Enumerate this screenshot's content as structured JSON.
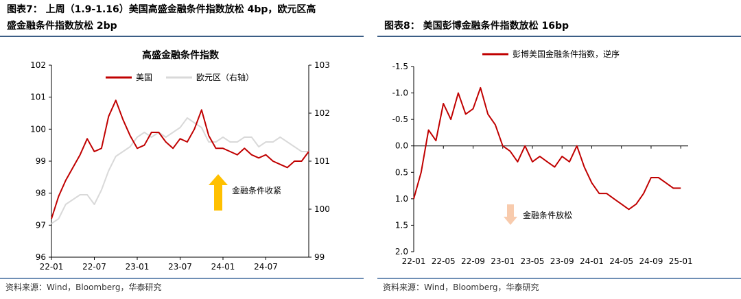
{
  "figures": [
    {
      "title_line1": "图表7：  上周（1.9-1.16）美国高盛金融条件指数放松  4bp，欧元区高",
      "title_line2": "盛金融条件指数放松 2bp",
      "source": "资料来源：Wind，Bloomberg，华泰研究"
    },
    {
      "title_line1": "图表8：  美国彭博金融条件指数放松 16bp",
      "source": "资料来源：Wind，Bloomberg，华泰研究"
    }
  ],
  "chart_data": [
    {
      "type": "line",
      "title": "高盛金融条件指数",
      "x_ticks": [
        "22-01",
        "22-07",
        "23-01",
        "23-07",
        "24-01",
        "24-07"
      ],
      "x_range": [
        "2022-01",
        "2025-01"
      ],
      "y_left": {
        "ylim": [
          96,
          102
        ],
        "ticks": [
          "96",
          "97",
          "98",
          "99",
          "100",
          "101",
          "102"
        ]
      },
      "y_right": {
        "ylim": [
          99,
          103
        ],
        "ticks": [
          "99",
          "100",
          "101",
          "102",
          "103"
        ]
      },
      "legend_position": "top",
      "series": [
        {
          "name": "美国",
          "axis": "left",
          "color": "#c00000",
          "points": [
            [
              "2022-01",
              97.2
            ],
            [
              "2022-02",
              97.9
            ],
            [
              "2022-03",
              98.4
            ],
            [
              "2022-04",
              98.8
            ],
            [
              "2022-05",
              99.2
            ],
            [
              "2022-06",
              99.7
            ],
            [
              "2022-07",
              99.3
            ],
            [
              "2022-08",
              99.4
            ],
            [
              "2022-09",
              100.4
            ],
            [
              "2022-10",
              100.9
            ],
            [
              "2022-11",
              100.3
            ],
            [
              "2022-12",
              99.8
            ],
            [
              "2023-01",
              99.4
            ],
            [
              "2023-02",
              99.5
            ],
            [
              "2023-03",
              99.9
            ],
            [
              "2023-04",
              99.9
            ],
            [
              "2023-05",
              99.6
            ],
            [
              "2023-06",
              99.4
            ],
            [
              "2023-07",
              99.7
            ],
            [
              "2023-08",
              99.6
            ],
            [
              "2023-09",
              100.0
            ],
            [
              "2023-10",
              100.6
            ],
            [
              "2023-11",
              99.8
            ],
            [
              "2023-12",
              99.4
            ],
            [
              "2024-01",
              99.4
            ],
            [
              "2024-02",
              99.3
            ],
            [
              "2024-03",
              99.2
            ],
            [
              "2024-04",
              99.4
            ],
            [
              "2024-05",
              99.2
            ],
            [
              "2024-06",
              99.1
            ],
            [
              "2024-07",
              99.2
            ],
            [
              "2024-08",
              99.0
            ],
            [
              "2024-09",
              98.9
            ],
            [
              "2024-10",
              98.8
            ],
            [
              "2024-11",
              99.0
            ],
            [
              "2024-12",
              99.0
            ],
            [
              "2025-01",
              99.3
            ]
          ]
        },
        {
          "name": "欧元区（右轴）",
          "axis": "right",
          "color": "#d9d9d9",
          "points": [
            [
              "2022-01",
              99.7
            ],
            [
              "2022-02",
              99.8
            ],
            [
              "2022-03",
              100.1
            ],
            [
              "2022-04",
              100.2
            ],
            [
              "2022-05",
              100.3
            ],
            [
              "2022-06",
              100.3
            ],
            [
              "2022-07",
              100.1
            ],
            [
              "2022-08",
              100.4
            ],
            [
              "2022-09",
              100.8
            ],
            [
              "2022-10",
              101.1
            ],
            [
              "2022-11",
              101.2
            ],
            [
              "2022-12",
              101.3
            ],
            [
              "2023-01",
              101.5
            ],
            [
              "2023-02",
              101.6
            ],
            [
              "2023-03",
              101.5
            ],
            [
              "2023-04",
              101.6
            ],
            [
              "2023-05",
              101.5
            ],
            [
              "2023-06",
              101.6
            ],
            [
              "2023-07",
              101.7
            ],
            [
              "2023-08",
              101.9
            ],
            [
              "2023-09",
              101.8
            ],
            [
              "2023-10",
              101.7
            ],
            [
              "2023-11",
              101.4
            ],
            [
              "2023-12",
              101.4
            ],
            [
              "2024-01",
              101.5
            ],
            [
              "2024-02",
              101.4
            ],
            [
              "2024-03",
              101.4
            ],
            [
              "2024-04",
              101.5
            ],
            [
              "2024-05",
              101.5
            ],
            [
              "2024-06",
              101.3
            ],
            [
              "2024-07",
              101.4
            ],
            [
              "2024-08",
              101.4
            ],
            [
              "2024-09",
              101.5
            ],
            [
              "2024-10",
              101.4
            ],
            [
              "2024-11",
              101.3
            ],
            [
              "2024-12",
              101.2
            ],
            [
              "2025-01",
              101.2
            ]
          ]
        }
      ],
      "annotation": {
        "text": "金融条件收紧",
        "arrow": "up",
        "arrow_color": "#ffc000"
      }
    },
    {
      "type": "line",
      "y_inverted": true,
      "x_ticks": [
        "22-01",
        "22-05",
        "22-09",
        "23-01",
        "23-05",
        "23-09",
        "24-01",
        "24-05",
        "24-09",
        "25-01"
      ],
      "x_range": [
        "2022-01",
        "2025-02"
      ],
      "y": {
        "ylim": [
          2.0,
          -1.5
        ],
        "ticks": [
          "-1.5",
          "-1.0",
          "-0.5",
          "0.0",
          "0.5",
          "1.0",
          "1.5",
          "2.0"
        ]
      },
      "legend_position": "top",
      "series": [
        {
          "name": "彭博美国金融条件指数，逆序",
          "color": "#c00000",
          "points": [
            [
              "2022-01",
              1.0
            ],
            [
              "2022-02",
              0.5
            ],
            [
              "2022-03",
              -0.3
            ],
            [
              "2022-04",
              -0.1
            ],
            [
              "2022-05",
              -0.8
            ],
            [
              "2022-06",
              -0.5
            ],
            [
              "2022-07",
              -1.0
            ],
            [
              "2022-08",
              -0.6
            ],
            [
              "2022-09",
              -0.7
            ],
            [
              "2022-10",
              -1.1
            ],
            [
              "2022-11",
              -0.6
            ],
            [
              "2022-12",
              -0.4
            ],
            [
              "2023-01",
              0.0
            ],
            [
              "2023-02",
              0.1
            ],
            [
              "2023-03",
              0.3
            ],
            [
              "2023-04",
              0.0
            ],
            [
              "2023-05",
              0.3
            ],
            [
              "2023-06",
              0.2
            ],
            [
              "2023-07",
              0.3
            ],
            [
              "2023-08",
              0.4
            ],
            [
              "2023-09",
              0.2
            ],
            [
              "2023-10",
              0.3
            ],
            [
              "2023-11",
              0.0
            ],
            [
              "2023-12",
              0.4
            ],
            [
              "2024-01",
              0.7
            ],
            [
              "2024-02",
              0.9
            ],
            [
              "2024-03",
              0.9
            ],
            [
              "2024-04",
              1.0
            ],
            [
              "2024-05",
              1.1
            ],
            [
              "2024-06",
              1.2
            ],
            [
              "2024-07",
              1.1
            ],
            [
              "2024-08",
              0.9
            ],
            [
              "2024-09",
              0.6
            ],
            [
              "2024-10",
              0.6
            ],
            [
              "2024-11",
              0.7
            ],
            [
              "2024-12",
              0.8
            ],
            [
              "2025-01",
              0.8
            ]
          ]
        }
      ],
      "annotation": {
        "text": "金融条件放松",
        "arrow": "down",
        "arrow_color": "#f8cbad"
      }
    }
  ]
}
